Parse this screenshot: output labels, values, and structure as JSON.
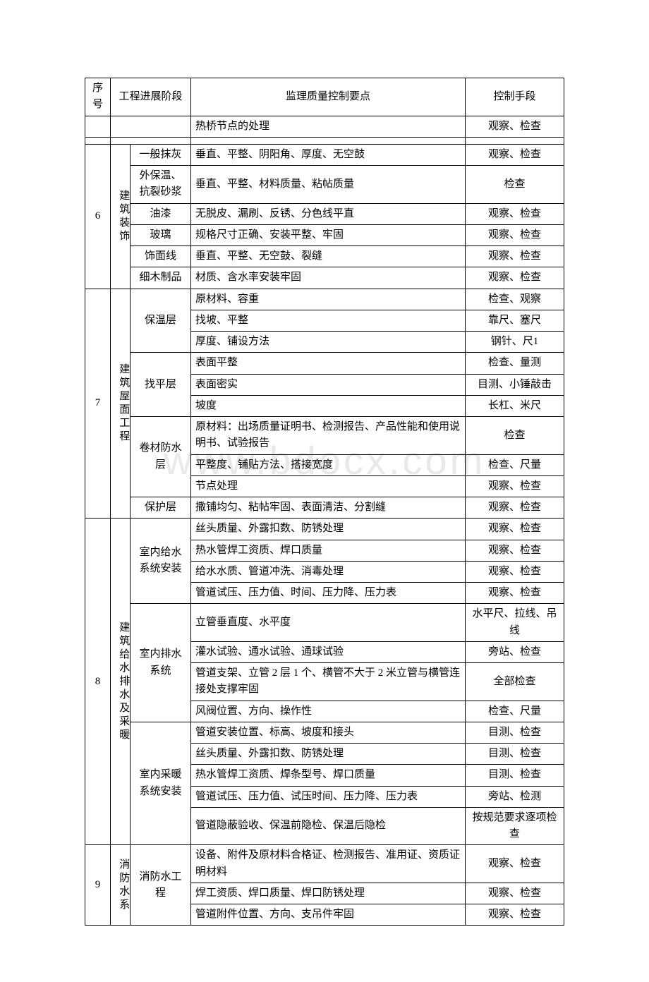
{
  "watermark": "www.bdocx.com",
  "headers": {
    "seq": "序号",
    "stage": "工程进展阶段",
    "point": "监理质量控制要点",
    "method": "控制手段"
  },
  "topRow": {
    "point": "热桥节点的处理",
    "method": "观察、检查"
  },
  "section6": {
    "seq": "6",
    "stageA": "建筑装饰",
    "rows": [
      {
        "sub": "一般抹灰",
        "point": "垂直、平整、阴阳角、厚度、无空鼓",
        "method": "观察、检查"
      },
      {
        "sub": "外保温、抗裂砂浆",
        "point": "垂直、平整、材料质量、粘帖质量",
        "method": "检查"
      },
      {
        "sub": "油漆",
        "point": "无脱皮、漏刷、反锈、分色线平直",
        "method": "观察、检查"
      },
      {
        "sub": "玻璃",
        "point": "规格尺寸正确、安装平整、牢固",
        "method": "观察、检查"
      },
      {
        "sub": "饰面线",
        "point": "垂直、平整、无空鼓、裂缝",
        "method": "观察、检查"
      },
      {
        "sub": "细木制品",
        "point": "材质、含水率安装牢固",
        "method": "观察、检查"
      }
    ]
  },
  "section7": {
    "seq": "7",
    "stageA": "建筑屋面工程",
    "groups": [
      {
        "sub": "保温层",
        "items": [
          {
            "point": "原材料、容重",
            "method": "检查、观察"
          },
          {
            "point": "找坡、平整",
            "method": "靠尺、塞尺"
          },
          {
            "point": "厚度、铺设方法",
            "method": "钢针、尺1"
          }
        ]
      },
      {
        "sub": "找平层",
        "items": [
          {
            "point": "表面平整",
            "method": "检查、量测"
          },
          {
            "point": "表面密实",
            "method": "目测、小锤敲击"
          },
          {
            "point": "坡度",
            "method": "长杠、米尺"
          }
        ]
      },
      {
        "sub": "卷材防水层",
        "items": [
          {
            "point": "原材料：出场质量证明书、检测报告、产品性能和使用说明书、试验报告",
            "method": "检查"
          },
          {
            "point": "平整度、铺贴方法、搭接宽度",
            "method": "检查、尺量"
          },
          {
            "point": "节点处理",
            "method": "观察、检查"
          }
        ]
      },
      {
        "sub": "保护层",
        "items": [
          {
            "point": "撒铺均匀、粘帖牢固、表面清洁、分割缝",
            "method": "观察、检查"
          }
        ]
      }
    ]
  },
  "section8": {
    "seq": "8",
    "stageA": "建筑给水排水及采暖",
    "groups": [
      {
        "sub": "室内给水系统安装",
        "items": [
          {
            "point": "丝头质量、外露扣数、防锈处理",
            "method": "观察、检查"
          },
          {
            "point": "热水管焊工资质、焊口质量",
            "method": "观察、检查"
          },
          {
            "point": "给水水质、管道冲洗、消毒处理",
            "method": "观察、检查"
          },
          {
            "point": "管道试压、压力值、时间、压力降、压力表",
            "method": "观察、检查"
          }
        ]
      },
      {
        "sub": "室内排水系统",
        "items": [
          {
            "point": "立管垂直度、水平度",
            "method": "水平尺、拉线、吊线"
          },
          {
            "point": "灌水试验、通水试验、通球试验",
            "method": "旁站、检查"
          },
          {
            "point": "管道支架、立管 2 层 1 个、横管不大于 2 米立管与横管连接处支撑牢固",
            "method": "全部检查"
          },
          {
            "point": "风阀位置、方向、操作性",
            "method": "检查、尺量"
          }
        ]
      },
      {
        "sub": "室内采暖系统安装",
        "items": [
          {
            "point": "管道安装位置、标高、坡度和接头",
            "method": "目测、检查"
          },
          {
            "point": "丝头质量、外露扣数、防锈处理",
            "method": "目测、检查"
          },
          {
            "point": "热水管焊工资质、焊条型号、焊口质量",
            "method": "目测、检查"
          },
          {
            "point": "管道试压、压力值、试压时间、压力降、压力表",
            "method": "旁站、检测"
          },
          {
            "point": "管道隐蔽验收、保温前隐检、保温后隐检",
            "method": "按规范要求逐项检查"
          }
        ]
      }
    ]
  },
  "section9": {
    "seq": "9",
    "stageA": "消防水系",
    "sub": "消防水工程",
    "items": [
      {
        "point": "设备、附件及原材料合格证、检测报告、准用证、资质证明材料",
        "method": "观察、检查"
      },
      {
        "point": "焊工资质、焊口质量、焊口防锈处理",
        "method": "观察、检查"
      },
      {
        "point": "管道附件位置、方向、支吊件牢固",
        "method": "观察、检查"
      }
    ]
  }
}
